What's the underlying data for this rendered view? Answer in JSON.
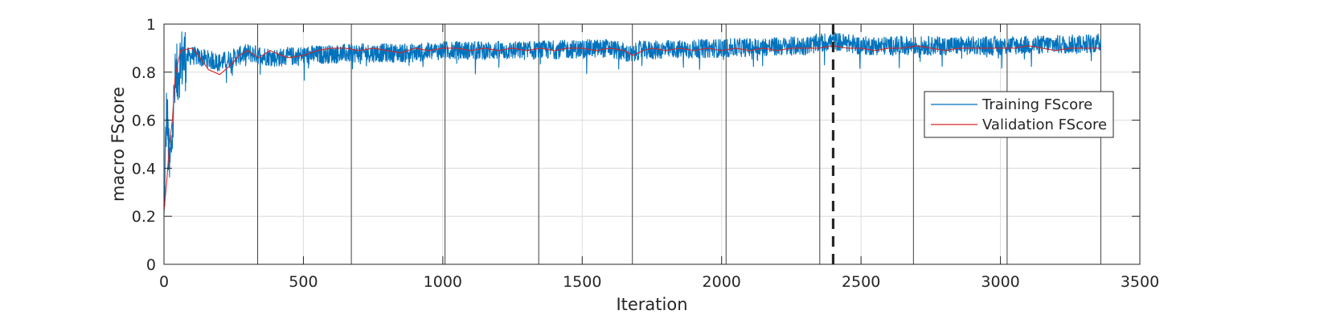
{
  "chart_data": {
    "type": "line",
    "title": "",
    "xlabel": "Iteration",
    "ylabel": "macro FScore",
    "xlim": [
      0,
      3500
    ],
    "ylim": [
      0,
      1
    ],
    "xticks": [
      0,
      500,
      1000,
      1500,
      2000,
      2500,
      3000,
      3500
    ],
    "yticks": [
      0,
      0.2,
      0.4,
      0.6,
      0.8,
      1
    ],
    "xtick_labels": [
      "0",
      "500",
      "1000",
      "1500",
      "2000",
      "2500",
      "3000",
      "3500"
    ],
    "ytick_labels": [
      "0",
      "0.2",
      "0.4",
      "0.6",
      "0.8",
      "1"
    ],
    "grid": true,
    "legend_position": "top-right",
    "epoch_lines": [
      336,
      672,
      1008,
      1344,
      1680,
      2016,
      2352,
      2688,
      3024,
      3360
    ],
    "marker_line": {
      "x": 2400,
      "style": "dashed",
      "color": "#262626"
    },
    "series": [
      {
        "name": "Training FScore",
        "color": "#0072BD",
        "noise": 0.04,
        "anchors": [
          [
            0,
            0.16
          ],
          [
            5,
            0.45
          ],
          [
            10,
            0.65
          ],
          [
            20,
            0.38
          ],
          [
            30,
            0.55
          ],
          [
            40,
            0.75
          ],
          [
            60,
            0.85
          ],
          [
            100,
            0.87
          ],
          [
            200,
            0.84
          ],
          [
            300,
            0.88
          ],
          [
            400,
            0.86
          ],
          [
            500,
            0.87
          ],
          [
            700,
            0.88
          ],
          [
            900,
            0.88
          ],
          [
            1000,
            0.89
          ],
          [
            1300,
            0.89
          ],
          [
            1600,
            0.9
          ],
          [
            1680,
            0.87
          ],
          [
            1700,
            0.89
          ],
          [
            2000,
            0.9
          ],
          [
            2300,
            0.91
          ],
          [
            2400,
            0.93
          ],
          [
            2500,
            0.91
          ],
          [
            3000,
            0.91
          ],
          [
            3360,
            0.92
          ]
        ]
      },
      {
        "name": "Validation FScore",
        "color": "#D62728",
        "points": [
          [
            0,
            0.22
          ],
          [
            10,
            0.35
          ],
          [
            20,
            0.5
          ],
          [
            30,
            0.6
          ],
          [
            40,
            0.78
          ],
          [
            50,
            0.84
          ],
          [
            60,
            0.89
          ],
          [
            80,
            0.895
          ],
          [
            100,
            0.9
          ],
          [
            130,
            0.86
          ],
          [
            160,
            0.81
          ],
          [
            200,
            0.79
          ],
          [
            240,
            0.83
          ],
          [
            270,
            0.87
          ],
          [
            300,
            0.89
          ],
          [
            340,
            0.86
          ],
          [
            380,
            0.89
          ],
          [
            420,
            0.87
          ],
          [
            450,
            0.86
          ],
          [
            500,
            0.87
          ],
          [
            550,
            0.89
          ],
          [
            600,
            0.9
          ],
          [
            650,
            0.9
          ],
          [
            700,
            0.89
          ],
          [
            750,
            0.9
          ],
          [
            800,
            0.89
          ],
          [
            850,
            0.88
          ],
          [
            900,
            0.9
          ],
          [
            950,
            0.89
          ],
          [
            1000,
            0.9
          ],
          [
            1050,
            0.9
          ],
          [
            1100,
            0.89
          ],
          [
            1150,
            0.9
          ],
          [
            1200,
            0.89
          ],
          [
            1250,
            0.9
          ],
          [
            1300,
            0.89
          ],
          [
            1350,
            0.9
          ],
          [
            1400,
            0.89
          ],
          [
            1450,
            0.9
          ],
          [
            1500,
            0.9
          ],
          [
            1550,
            0.89
          ],
          [
            1600,
            0.9
          ],
          [
            1650,
            0.89
          ],
          [
            1680,
            0.87
          ],
          [
            1720,
            0.89
          ],
          [
            1750,
            0.9
          ],
          [
            1800,
            0.89
          ],
          [
            1850,
            0.9
          ],
          [
            1900,
            0.89
          ],
          [
            1950,
            0.9
          ],
          [
            2000,
            0.89
          ],
          [
            2050,
            0.9
          ],
          [
            2100,
            0.89
          ],
          [
            2150,
            0.9
          ],
          [
            2200,
            0.89
          ],
          [
            2250,
            0.9
          ],
          [
            2300,
            0.9
          ],
          [
            2350,
            0.9
          ],
          [
            2400,
            0.91
          ],
          [
            2450,
            0.9
          ],
          [
            2500,
            0.9
          ],
          [
            2550,
            0.89
          ],
          [
            2600,
            0.9
          ],
          [
            2650,
            0.9
          ],
          [
            2700,
            0.91
          ],
          [
            2750,
            0.9
          ],
          [
            2800,
            0.89
          ],
          [
            2850,
            0.9
          ],
          [
            2900,
            0.9
          ],
          [
            2950,
            0.9
          ],
          [
            3000,
            0.9
          ],
          [
            3050,
            0.9
          ],
          [
            3100,
            0.91
          ],
          [
            3150,
            0.9
          ],
          [
            3200,
            0.89
          ],
          [
            3250,
            0.9
          ],
          [
            3300,
            0.9
          ],
          [
            3360,
            0.9
          ]
        ]
      }
    ]
  }
}
